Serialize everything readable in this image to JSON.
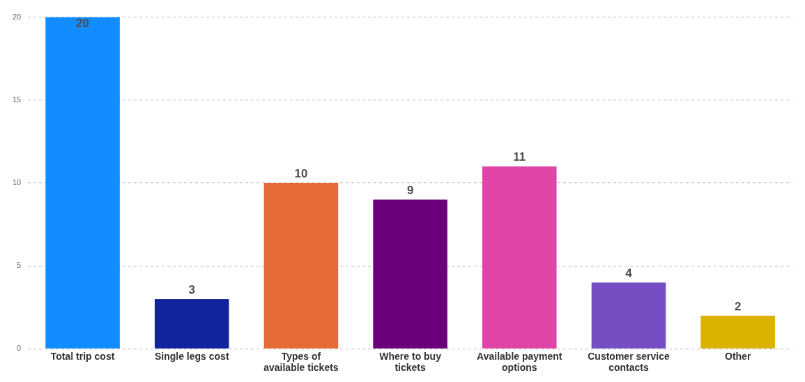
{
  "chart_data": {
    "type": "bar",
    "categories": [
      "Total trip cost",
      "Single legs cost",
      "Types of available tickets",
      "Where to buy tickets",
      "Available payment options",
      "Customer service contacts",
      "Other"
    ],
    "values": [
      20,
      3,
      10,
      9,
      11,
      4,
      2
    ],
    "colors": [
      "#118dff",
      "#12239e",
      "#e66c37",
      "#6b007b",
      "#e044a7",
      "#744ec2",
      "#d9b300"
    ],
    "ylim": [
      0,
      20
    ],
    "yticks": [
      0,
      5,
      10,
      15,
      20
    ],
    "grid": "y",
    "data_labels": true,
    "legend": false
  }
}
